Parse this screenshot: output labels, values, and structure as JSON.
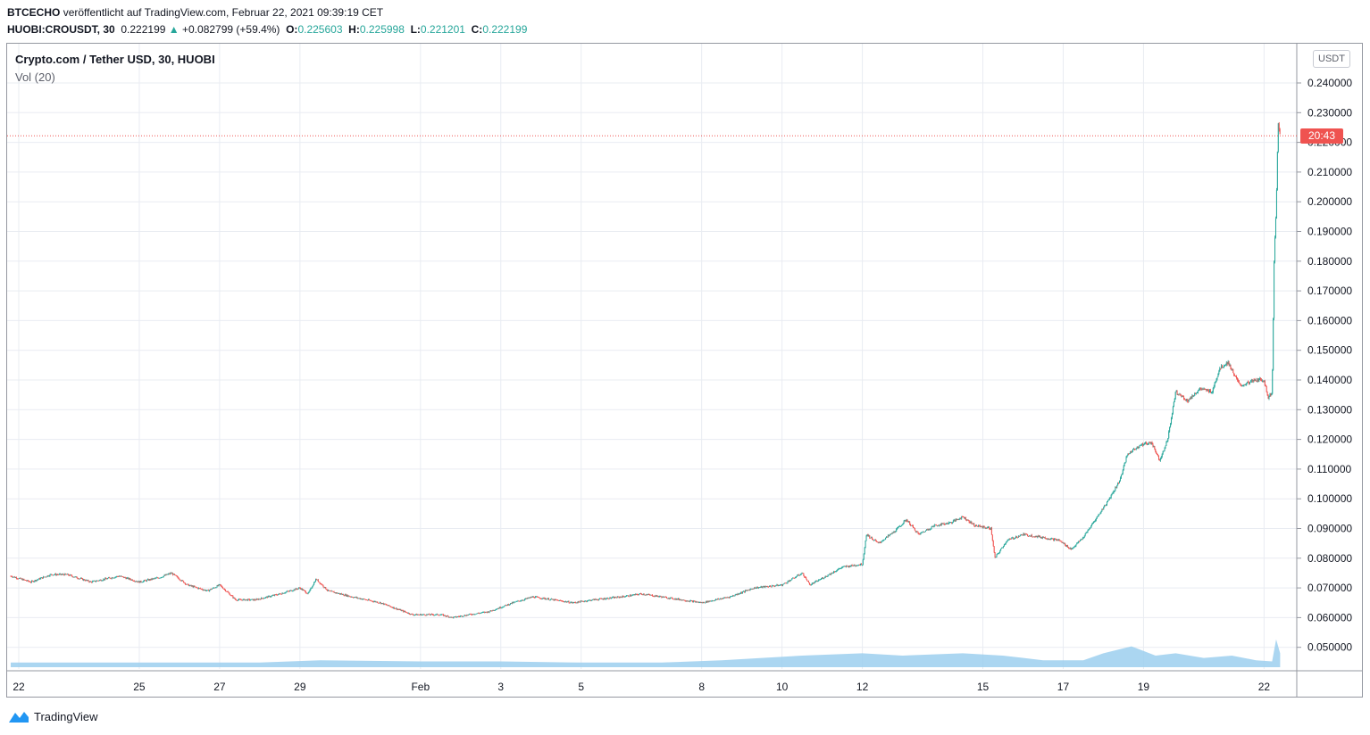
{
  "header": {
    "author": "BTCECHO",
    "published": "veröffentlicht auf TradingView.com, Februar 22, 2021 09:39:19 CET",
    "symbol": "HUOBI:CROUSDT, 30",
    "last": "0.222199",
    "change": "+0.082799 (+59.4%)",
    "o_label": "O:",
    "o": "0.225603",
    "h_label": "H:",
    "h": "0.225998",
    "l_label": "L:",
    "l": "0.221201",
    "c_label": "C:",
    "c": "0.222199"
  },
  "legend": {
    "title": "Crypto.com / Tether USD, 30, HUOBI",
    "volume": "Vol (20)"
  },
  "axis": {
    "unit": "USDT",
    "current_time_label": "20:43",
    "current_price": 0.222199
  },
  "brand": {
    "name": "TradingView"
  },
  "colors": {
    "up": "#26a69a",
    "down": "#ef5350",
    "volume": "#9ccfee",
    "grid": "#e9ecf2",
    "price_line": "#ef5350"
  },
  "chart_data": {
    "type": "candlestick",
    "title": "Crypto.com / Tether USD, 30, HUOBI",
    "ylabel": "USDT",
    "ylim": [
      0.042,
      0.254
    ],
    "y_ticks": [
      0.05,
      0.06,
      0.07,
      0.08,
      0.09,
      0.1,
      0.11,
      0.12,
      0.13,
      0.14,
      0.15,
      0.16,
      0.17,
      0.18,
      0.19,
      0.2,
      0.21,
      0.22,
      0.23,
      0.24
    ],
    "x_ticks": [
      {
        "label": "22",
        "day": 0
      },
      {
        "label": "25",
        "day": 3
      },
      {
        "label": "27",
        "day": 5
      },
      {
        "label": "29",
        "day": 7
      },
      {
        "label": "Feb",
        "day": 10
      },
      {
        "label": "3",
        "day": 12
      },
      {
        "label": "5",
        "day": 14
      },
      {
        "label": "8",
        "day": 17
      },
      {
        "label": "10",
        "day": 19
      },
      {
        "label": "12",
        "day": 21
      },
      {
        "label": "15",
        "day": 24
      },
      {
        "label": "17",
        "day": 26
      },
      {
        "label": "19",
        "day": 28
      },
      {
        "label": "22",
        "day": 31
      }
    ],
    "series": [
      {
        "name": "CROUSDT",
        "points": [
          [
            -0.2,
            0.074
          ],
          [
            0.3,
            0.072
          ],
          [
            0.8,
            0.0745
          ],
          [
            1.2,
            0.0745
          ],
          [
            1.8,
            0.072
          ],
          [
            2.5,
            0.074
          ],
          [
            3.0,
            0.072
          ],
          [
            3.5,
            0.0735
          ],
          [
            3.8,
            0.075
          ],
          [
            4.2,
            0.071
          ],
          [
            4.7,
            0.069
          ],
          [
            5.0,
            0.071
          ],
          [
            5.4,
            0.066
          ],
          [
            5.9,
            0.066
          ],
          [
            6.5,
            0.068
          ],
          [
            7.0,
            0.07
          ],
          [
            7.2,
            0.068
          ],
          [
            7.4,
            0.073
          ],
          [
            7.7,
            0.069
          ],
          [
            8.3,
            0.067
          ],
          [
            9.0,
            0.065
          ],
          [
            9.8,
            0.061
          ],
          [
            10.5,
            0.061
          ],
          [
            10.8,
            0.06
          ],
          [
            11.2,
            0.061
          ],
          [
            11.7,
            0.062
          ],
          [
            12.3,
            0.065
          ],
          [
            12.8,
            0.067
          ],
          [
            13.3,
            0.066
          ],
          [
            13.8,
            0.065
          ],
          [
            14.3,
            0.066
          ],
          [
            15.0,
            0.067
          ],
          [
            15.5,
            0.068
          ],
          [
            16.0,
            0.067
          ],
          [
            16.5,
            0.066
          ],
          [
            17.0,
            0.065
          ],
          [
            17.7,
            0.067
          ],
          [
            18.3,
            0.07
          ],
          [
            19.0,
            0.071
          ],
          [
            19.5,
            0.075
          ],
          [
            19.7,
            0.071
          ],
          [
            20.1,
            0.074
          ],
          [
            20.5,
            0.077
          ],
          [
            21.0,
            0.078
          ],
          [
            21.1,
            0.088
          ],
          [
            21.4,
            0.085
          ],
          [
            21.8,
            0.089
          ],
          [
            22.1,
            0.093
          ],
          [
            22.4,
            0.088
          ],
          [
            22.8,
            0.091
          ],
          [
            23.2,
            0.092
          ],
          [
            23.5,
            0.094
          ],
          [
            23.8,
            0.091
          ],
          [
            24.2,
            0.09
          ],
          [
            24.3,
            0.08
          ],
          [
            24.6,
            0.086
          ],
          [
            25.0,
            0.088
          ],
          [
            25.5,
            0.087
          ],
          [
            25.9,
            0.086
          ],
          [
            26.2,
            0.083
          ],
          [
            26.5,
            0.087
          ],
          [
            26.8,
            0.093
          ],
          [
            27.1,
            0.099
          ],
          [
            27.4,
            0.106
          ],
          [
            27.6,
            0.115
          ],
          [
            27.9,
            0.118
          ],
          [
            28.2,
            0.119
          ],
          [
            28.4,
            0.113
          ],
          [
            28.6,
            0.12
          ],
          [
            28.8,
            0.136
          ],
          [
            29.1,
            0.133
          ],
          [
            29.4,
            0.137
          ],
          [
            29.7,
            0.136
          ],
          [
            29.9,
            0.144
          ],
          [
            30.1,
            0.146
          ],
          [
            30.4,
            0.138
          ],
          [
            30.8,
            0.14
          ],
          [
            31.0,
            0.14
          ],
          [
            31.1,
            0.134
          ],
          [
            31.2,
            0.136
          ],
          [
            31.25,
            0.18
          ],
          [
            31.3,
            0.198
          ],
          [
            31.35,
            0.226
          ],
          [
            31.4,
            0.222199
          ]
        ]
      }
    ],
    "volume": [
      [
        -0.2,
        2
      ],
      [
        2,
        2
      ],
      [
        4,
        2
      ],
      [
        6,
        2
      ],
      [
        7.5,
        3
      ],
      [
        10,
        2.5
      ],
      [
        12,
        2.5
      ],
      [
        14,
        2
      ],
      [
        16,
        2
      ],
      [
        17.5,
        3
      ],
      [
        18.5,
        4
      ],
      [
        19.5,
        5
      ],
      [
        21,
        6
      ],
      [
        22,
        5
      ],
      [
        23.5,
        6
      ],
      [
        24.5,
        5
      ],
      [
        25.5,
        3
      ],
      [
        26.5,
        3
      ],
      [
        27,
        6
      ],
      [
        27.7,
        9
      ],
      [
        28.3,
        5
      ],
      [
        28.8,
        6
      ],
      [
        29.5,
        4
      ],
      [
        30.2,
        5
      ],
      [
        30.8,
        3
      ],
      [
        31.2,
        2.5
      ],
      [
        31.3,
        12
      ],
      [
        31.4,
        6
      ]
    ]
  }
}
